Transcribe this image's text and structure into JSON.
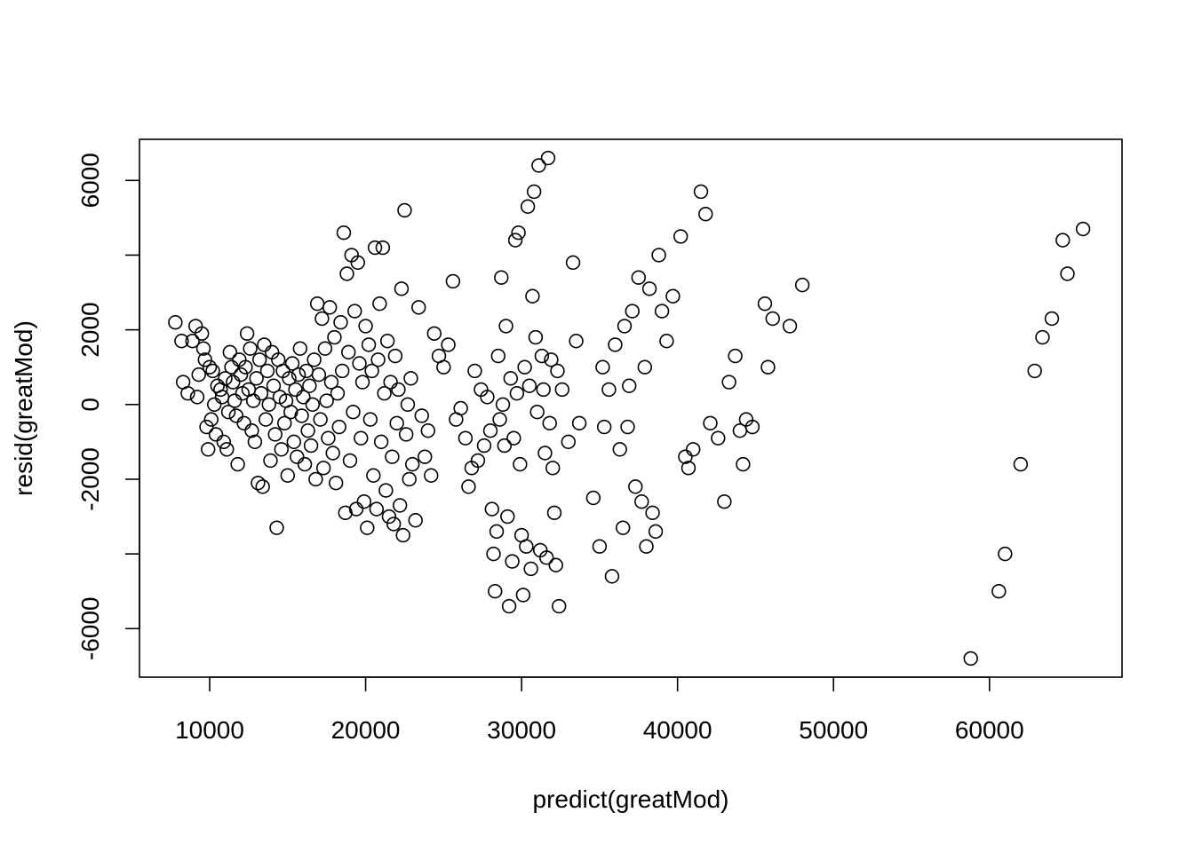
{
  "chart_data": {
    "type": "scatter",
    "title": "",
    "xlabel": "predict(greatMod)",
    "ylabel": "resid(greatMod)",
    "xlim": [
      5500,
      68500
    ],
    "ylim": [
      -7300,
      7100
    ],
    "x_ticks": [
      10000,
      20000,
      30000,
      40000,
      50000,
      60000
    ],
    "x_tick_labels": [
      "10000",
      "20000",
      "30000",
      "40000",
      "50000",
      "60000"
    ],
    "y_ticks": [
      -6000,
      -2000,
      0,
      2000,
      6000
    ],
    "y_tick_labels": [
      "-6000",
      "-2000",
      "0",
      "2000",
      "6000"
    ],
    "y_ticks_unlabeled": [
      -4000,
      4000
    ],
    "grid": false,
    "marker": "open-circle",
    "colors": {
      "points": "#000000",
      "frame": "#000000",
      "background": "#ffffff"
    },
    "points": [
      [
        7800,
        2200
      ],
      [
        8200,
        1700
      ],
      [
        8300,
        600
      ],
      [
        8600,
        300
      ],
      [
        8900,
        1700
      ],
      [
        9100,
        2100
      ],
      [
        9200,
        200
      ],
      [
        9300,
        800
      ],
      [
        9500,
        1900
      ],
      [
        9600,
        1500
      ],
      [
        9700,
        1200
      ],
      [
        9800,
        -600
      ],
      [
        9900,
        -1200
      ],
      [
        10000,
        1000
      ],
      [
        10100,
        -400
      ],
      [
        10200,
        900
      ],
      [
        10300,
        0
      ],
      [
        10400,
        -800
      ],
      [
        10500,
        500
      ],
      [
        10700,
        400
      ],
      [
        10800,
        200
      ],
      [
        10900,
        -1000
      ],
      [
        11000,
        700
      ],
      [
        11100,
        -1200
      ],
      [
        11200,
        -200
      ],
      [
        11300,
        1400
      ],
      [
        11400,
        1000
      ],
      [
        11500,
        600
      ],
      [
        11600,
        100
      ],
      [
        11700,
        -300
      ],
      [
        11800,
        -1600
      ],
      [
        11900,
        1200
      ],
      [
        12000,
        800
      ],
      [
        12100,
        300
      ],
      [
        12200,
        -500
      ],
      [
        12300,
        1000
      ],
      [
        12400,
        1900
      ],
      [
        12500,
        400
      ],
      [
        12600,
        1500
      ],
      [
        12700,
        -700
      ],
      [
        12800,
        100
      ],
      [
        12900,
        -1000
      ],
      [
        13000,
        700
      ],
      [
        13100,
        -2100
      ],
      [
        13200,
        1200
      ],
      [
        13300,
        300
      ],
      [
        13400,
        -2200
      ],
      [
        13500,
        1600
      ],
      [
        13600,
        -400
      ],
      [
        13700,
        900
      ],
      [
        13800,
        0
      ],
      [
        13900,
        -1500
      ],
      [
        14000,
        1400
      ],
      [
        14100,
        500
      ],
      [
        14200,
        -800
      ],
      [
        14300,
        -3300
      ],
      [
        14400,
        1200
      ],
      [
        14500,
        200
      ],
      [
        14600,
        -1200
      ],
      [
        14700,
        900
      ],
      [
        14800,
        -500
      ],
      [
        14900,
        100
      ],
      [
        15000,
        -1900
      ],
      [
        15100,
        700
      ],
      [
        15200,
        -200
      ],
      [
        15300,
        1100
      ],
      [
        15400,
        -1000
      ],
      [
        15500,
        400
      ],
      [
        15600,
        -1400
      ],
      [
        15700,
        800
      ],
      [
        15800,
        1500
      ],
      [
        15900,
        -300
      ],
      [
        16000,
        200
      ],
      [
        16100,
        -1600
      ],
      [
        16200,
        900
      ],
      [
        16300,
        -700
      ],
      [
        16400,
        500
      ],
      [
        16500,
        -1100
      ],
      [
        16600,
        0
      ],
      [
        16700,
        1200
      ],
      [
        16800,
        -2000
      ],
      [
        16900,
        2700
      ],
      [
        17000,
        800
      ],
      [
        17100,
        -400
      ],
      [
        17200,
        2300
      ],
      [
        17300,
        -1700
      ],
      [
        17400,
        1500
      ],
      [
        17500,
        100
      ],
      [
        17600,
        -900
      ],
      [
        17700,
        2600
      ],
      [
        17800,
        600
      ],
      [
        17900,
        -1300
      ],
      [
        18000,
        1800
      ],
      [
        18100,
        -2100
      ],
      [
        18200,
        300
      ],
      [
        18300,
        -600
      ],
      [
        18400,
        2200
      ],
      [
        18500,
        900
      ],
      [
        18600,
        4600
      ],
      [
        18700,
        -2900
      ],
      [
        18800,
        3500
      ],
      [
        18900,
        1400
      ],
      [
        19000,
        -1500
      ],
      [
        19100,
        4000
      ],
      [
        19200,
        -200
      ],
      [
        19300,
        2500
      ],
      [
        19400,
        -2800
      ],
      [
        19500,
        3800
      ],
      [
        19600,
        1100
      ],
      [
        19700,
        -900
      ],
      [
        19800,
        600
      ],
      [
        19900,
        -2600
      ],
      [
        20000,
        2100
      ],
      [
        20100,
        -3300
      ],
      [
        20200,
        1600
      ],
      [
        20300,
        -400
      ],
      [
        20400,
        900
      ],
      [
        20500,
        -1900
      ],
      [
        20600,
        4200
      ],
      [
        20700,
        -2800
      ],
      [
        20800,
        1200
      ],
      [
        20900,
        2700
      ],
      [
        21000,
        -1000
      ],
      [
        21100,
        4200
      ],
      [
        21200,
        300
      ],
      [
        21300,
        -2300
      ],
      [
        21400,
        1700
      ],
      [
        21500,
        -3000
      ],
      [
        21600,
        600
      ],
      [
        21700,
        -1400
      ],
      [
        21800,
        -3200
      ],
      [
        21900,
        1300
      ],
      [
        22000,
        -500
      ],
      [
        22100,
        400
      ],
      [
        22200,
        -2700
      ],
      [
        22300,
        3100
      ],
      [
        22400,
        -3500
      ],
      [
        22500,
        5200
      ],
      [
        22600,
        -800
      ],
      [
        22700,
        0
      ],
      [
        22800,
        -2000
      ],
      [
        22900,
        700
      ],
      [
        23000,
        -1600
      ],
      [
        23200,
        -3100
      ],
      [
        23400,
        2600
      ],
      [
        23600,
        -300
      ],
      [
        23800,
        -1400
      ],
      [
        24000,
        -700
      ],
      [
        24200,
        -1900
      ],
      [
        24400,
        1900
      ],
      [
        24700,
        1300
      ],
      [
        25000,
        1000
      ],
      [
        25300,
        1600
      ],
      [
        25600,
        3300
      ],
      [
        25800,
        -400
      ],
      [
        26100,
        -100
      ],
      [
        26400,
        -900
      ],
      [
        26600,
        -2200
      ],
      [
        26800,
        -1700
      ],
      [
        27000,
        900
      ],
      [
        27200,
        -1500
      ],
      [
        27400,
        400
      ],
      [
        27600,
        -1100
      ],
      [
        27800,
        200
      ],
      [
        28000,
        -700
      ],
      [
        28100,
        -2800
      ],
      [
        28200,
        -4000
      ],
      [
        28300,
        -5000
      ],
      [
        28400,
        -3400
      ],
      [
        28500,
        1300
      ],
      [
        28600,
        -400
      ],
      [
        28700,
        3400
      ],
      [
        28800,
        0
      ],
      [
        28900,
        -1100
      ],
      [
        29000,
        2100
      ],
      [
        29100,
        -3000
      ],
      [
        29200,
        -5400
      ],
      [
        29300,
        700
      ],
      [
        29400,
        -4200
      ],
      [
        29500,
        -900
      ],
      [
        29600,
        4400
      ],
      [
        29700,
        300
      ],
      [
        29800,
        4600
      ],
      [
        29900,
        -1600
      ],
      [
        30000,
        -3500
      ],
      [
        30100,
        -5100
      ],
      [
        30200,
        1000
      ],
      [
        30300,
        -3800
      ],
      [
        30400,
        5300
      ],
      [
        30500,
        500
      ],
      [
        30600,
        -4400
      ],
      [
        30700,
        2900
      ],
      [
        30800,
        5700
      ],
      [
        30900,
        1800
      ],
      [
        31000,
        -200
      ],
      [
        31100,
        6400
      ],
      [
        31200,
        -3900
      ],
      [
        31300,
        1300
      ],
      [
        31400,
        400
      ],
      [
        31500,
        -1300
      ],
      [
        31600,
        -4100
      ],
      [
        31700,
        6600
      ],
      [
        31800,
        -500
      ],
      [
        31900,
        1200
      ],
      [
        32000,
        -1700
      ],
      [
        32100,
        -2900
      ],
      [
        32200,
        -4300
      ],
      [
        32300,
        900
      ],
      [
        32400,
        -5400
      ],
      [
        32600,
        400
      ],
      [
        33000,
        -1000
      ],
      [
        33300,
        3800
      ],
      [
        33500,
        1700
      ],
      [
        33700,
        -500
      ],
      [
        34600,
        -2500
      ],
      [
        35000,
        -3800
      ],
      [
        35200,
        1000
      ],
      [
        35300,
        -600
      ],
      [
        35600,
        400
      ],
      [
        35800,
        -4600
      ],
      [
        36000,
        1600
      ],
      [
        36300,
        -1200
      ],
      [
        36500,
        -3300
      ],
      [
        36600,
        2100
      ],
      [
        36800,
        -600
      ],
      [
        36900,
        500
      ],
      [
        37100,
        2500
      ],
      [
        37300,
        -2200
      ],
      [
        37500,
        3400
      ],
      [
        37700,
        -2600
      ],
      [
        37900,
        1000
      ],
      [
        38000,
        -3800
      ],
      [
        38200,
        3100
      ],
      [
        38400,
        -2900
      ],
      [
        38600,
        -3400
      ],
      [
        38800,
        4000
      ],
      [
        39000,
        2500
      ],
      [
        39300,
        1700
      ],
      [
        39700,
        2900
      ],
      [
        40200,
        4500
      ],
      [
        40500,
        -1400
      ],
      [
        40700,
        -1700
      ],
      [
        41000,
        -1200
      ],
      [
        41500,
        5700
      ],
      [
        41800,
        5100
      ],
      [
        42100,
        -500
      ],
      [
        42600,
        -900
      ],
      [
        43000,
        -2600
      ],
      [
        43300,
        600
      ],
      [
        43700,
        1300
      ],
      [
        44000,
        -700
      ],
      [
        44200,
        -1600
      ],
      [
        44400,
        -400
      ],
      [
        44800,
        -600
      ],
      [
        45600,
        2700
      ],
      [
        45800,
        1000
      ],
      [
        46100,
        2300
      ],
      [
        47200,
        2100
      ],
      [
        48000,
        3200
      ],
      [
        58800,
        -6800
      ],
      [
        60600,
        -5000
      ],
      [
        61000,
        -4000
      ],
      [
        62000,
        -1600
      ],
      [
        62900,
        900
      ],
      [
        63400,
        1800
      ],
      [
        64000,
        2300
      ],
      [
        64700,
        4400
      ],
      [
        65000,
        3500
      ],
      [
        66000,
        4700
      ]
    ]
  }
}
